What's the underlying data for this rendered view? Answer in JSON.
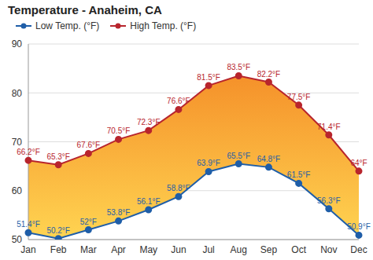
{
  "chart_data": {
    "type": "line",
    "title": "Temperature - Anaheim, CA",
    "categories": [
      "Jan",
      "Feb",
      "Mar",
      "Apr",
      "May",
      "Jun",
      "Jul",
      "Aug",
      "Sep",
      "Oct",
      "Nov",
      "Dec"
    ],
    "series": [
      {
        "name": "Low Temp. (°F)",
        "color": "#1f5ea8",
        "marker": "circle",
        "values": [
          51.4,
          50.2,
          52,
          53.8,
          56.1,
          58.8,
          63.9,
          65.5,
          64.8,
          61.5,
          56.3,
          50.9
        ],
        "value_labels": [
          "51.4°F",
          "50.2°F",
          "52°F",
          "53.8°F",
          "56.1°F",
          "58.8°F",
          "63.9°F",
          "65.5°F",
          "64.8°F",
          "61.5°F",
          "56.3°F",
          "50.9°F"
        ]
      },
      {
        "name": "High Temp. (°F)",
        "color": "#b8252d",
        "marker": "circle",
        "values": [
          66.2,
          65.3,
          67.6,
          70.5,
          72.3,
          76.6,
          81.5,
          83.5,
          82.2,
          77.5,
          71.4,
          64
        ],
        "value_labels": [
          "66.2°F",
          "65.3°F",
          "67.6°F",
          "70.5°F",
          "72.3°F",
          "76.6°F",
          "81.5°F",
          "83.5°F",
          "82.2°F",
          "77.5°F",
          "71.4°F",
          "64°F"
        ]
      }
    ],
    "ylim": [
      50,
      90
    ],
    "yticks": [
      50,
      60,
      70,
      80,
      90
    ],
    "grid": true,
    "legend": "upper left",
    "data_labels": true
  }
}
